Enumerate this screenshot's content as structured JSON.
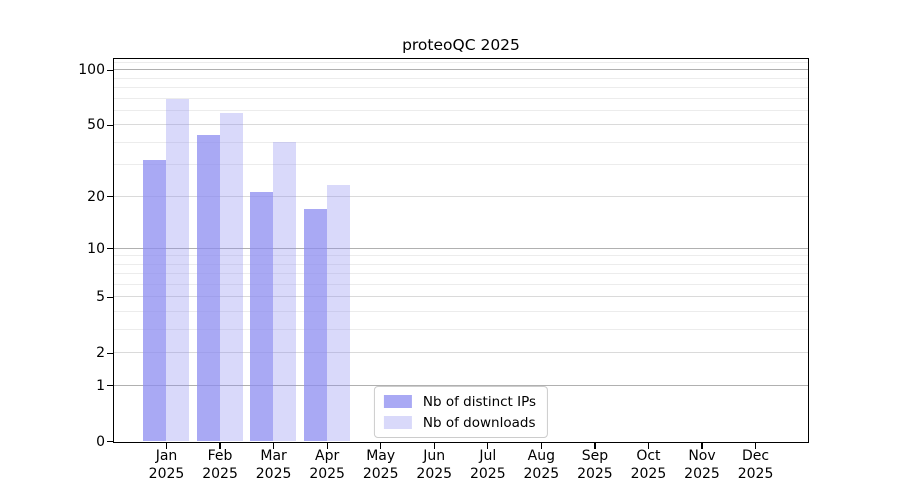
{
  "figure": {
    "background": "#ffffff"
  },
  "chart_data": {
    "type": "bar",
    "title": "proteoQC 2025",
    "categories": [
      "Jan",
      "Feb",
      "Mar",
      "Apr",
      "May",
      "Jun",
      "Jul",
      "Aug",
      "Sep",
      "Oct",
      "Nov",
      "Dec"
    ],
    "category_year": "2025",
    "series": [
      {
        "name": "Nb of distinct IPs",
        "key": "ips",
        "color": "#8c8cf0",
        "rgba": "rgba(140,140,240,0.75)",
        "values": [
          32,
          44,
          21,
          17,
          0,
          0,
          0,
          0,
          0,
          0,
          0,
          0
        ]
      },
      {
        "name": "Nb of downloads",
        "key": "downloads",
        "color": "#8c8cf0",
        "rgba": "rgba(140,140,240,0.33)",
        "values": [
          69,
          58,
          40,
          23,
          0,
          0,
          0,
          0,
          0,
          0,
          0,
          0
        ]
      }
    ],
    "y_axis": {
      "scale": "log1p",
      "ticks": [
        0,
        1,
        2,
        5,
        10,
        20,
        50,
        100
      ],
      "decade_ticks": [
        1,
        10,
        100
      ],
      "minor_ticks": [
        3,
        4,
        6,
        7,
        8,
        9,
        30,
        40,
        60,
        70,
        80,
        90,
        110
      ],
      "ymax": 115
    },
    "legend": {
      "position": "lower center"
    },
    "grid": true
  },
  "colors": {
    "grid_major_decade": "#b0b0b0",
    "grid_major": "#dadada",
    "grid_minor": "#ececec",
    "axis": "#000000",
    "legend_border": "#cccccc",
    "text": "#000000"
  }
}
